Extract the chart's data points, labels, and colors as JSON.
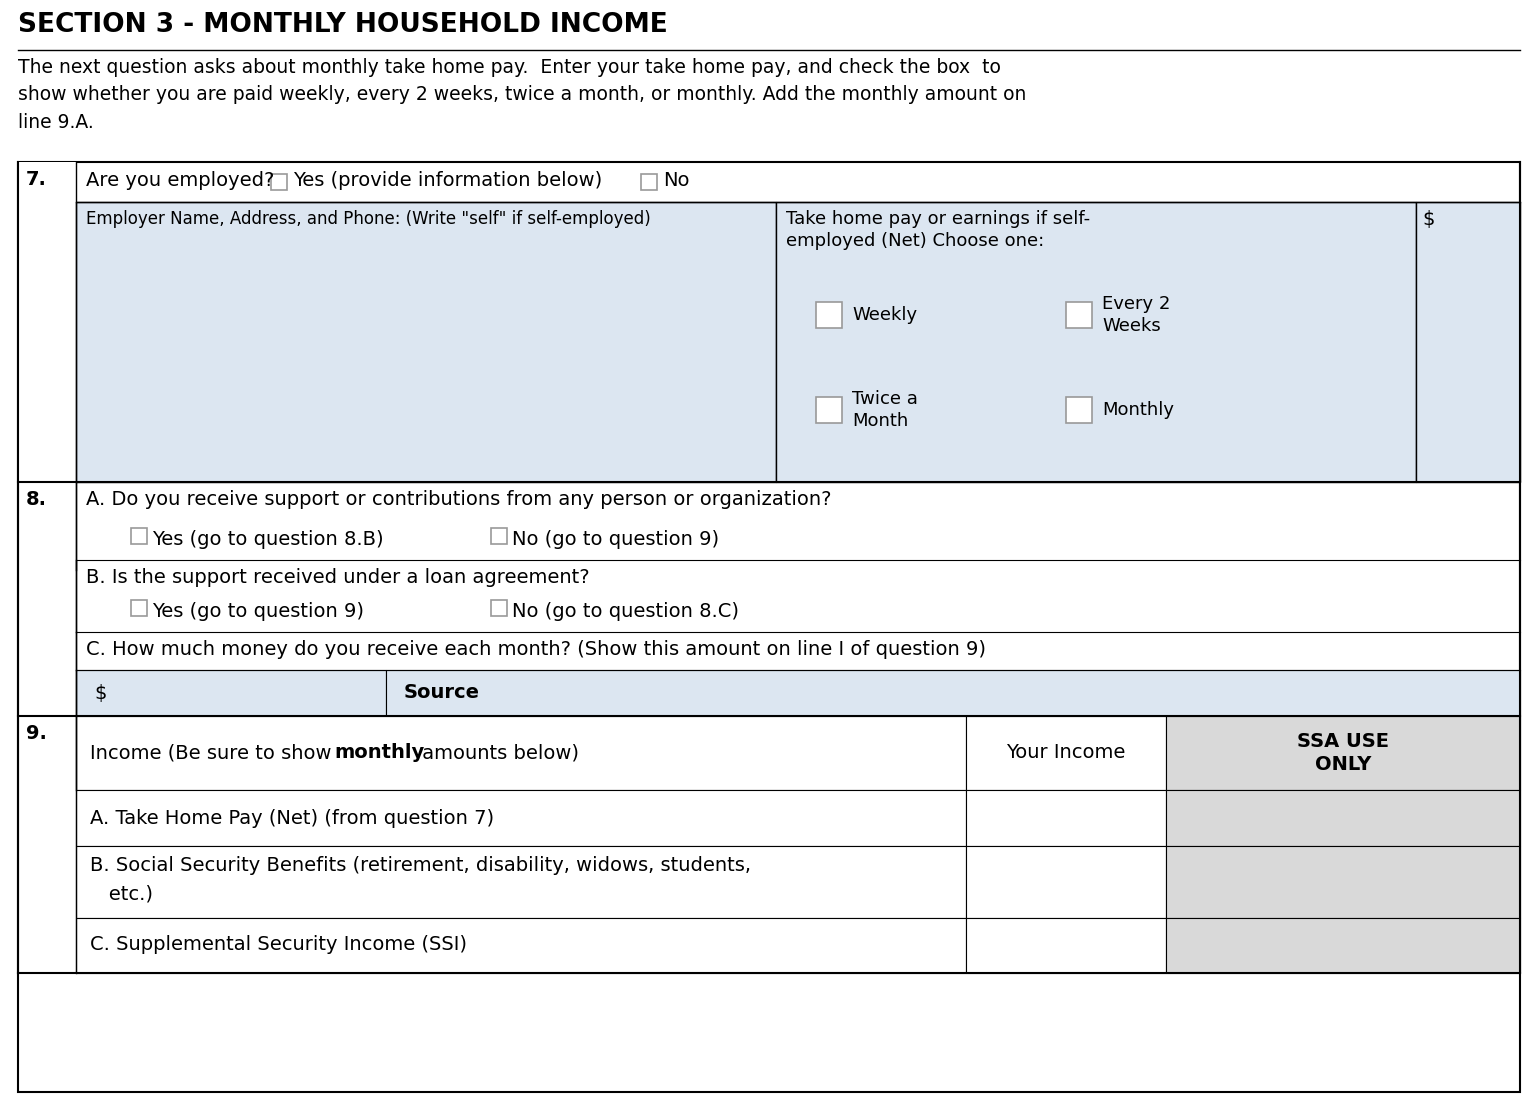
{
  "title": "SECTION 3 - MONTHLY HOUSEHOLD INCOME",
  "intro_text": "The next question asks about monthly take home pay.  Enter your take home pay, and check the box  to\nshow whether you are paid weekly, every 2 weeks, twice a month, or monthly. Add the monthly amount on\nline 9.A.",
  "bg_color": "#ffffff",
  "light_blue": "#dce6f1",
  "light_gray": "#d9d9d9",
  "q7_label": "7.",
  "q7_text": "Are you employed?",
  "q7_yes": "Yes (provide information below)",
  "q7_no": "No",
  "q7_employer_label": "Employer Name, Address, and Phone: (Write \"self\" if self-employed)",
  "q7_takehome_label1": "Take home pay or earnings if self-",
  "q7_takehome_label2": "employed (Net) Choose one:",
  "q7_dollar_sign": "$",
  "q7_weekly": "Weekly",
  "q7_every2weeks": "Every 2\nWeeks",
  "q7_twicea": "Twice a\nMonth",
  "q7_monthly": "Monthly",
  "q8_label": "8.",
  "q8a_text": "A. Do you receive support or contributions from any person or organization?",
  "q8a_yes": "Yes (go to question 8.B)",
  "q8a_no": "No (go to question 9)",
  "q8b_text": "B. Is the support received under a loan agreement?",
  "q8b_yes": "Yes (go to question 9)",
  "q8b_no": "No (go to question 8.C)",
  "q8c_text": "C. How much money do you receive each month? (Show this amount on line I of question 9)",
  "q8_dollar": "$",
  "q8_source": "Source",
  "q9_label": "9.",
  "q9_header_pre": "Income (Be sure to show ",
  "q9_header_bold": "monthly",
  "q9_header_post": " amounts below)",
  "q9_col2": "Your Income",
  "q9_col3": "SSA USE\nONLY",
  "q9a_text": "A. Take Home Pay (Net) (from question 7)",
  "q9b_line1": "B. Social Security Benefits (retirement, disability, widows, students,",
  "q9b_line2": "   etc.)",
  "q9c_text": "C. Supplemental Security Income (SSI)"
}
